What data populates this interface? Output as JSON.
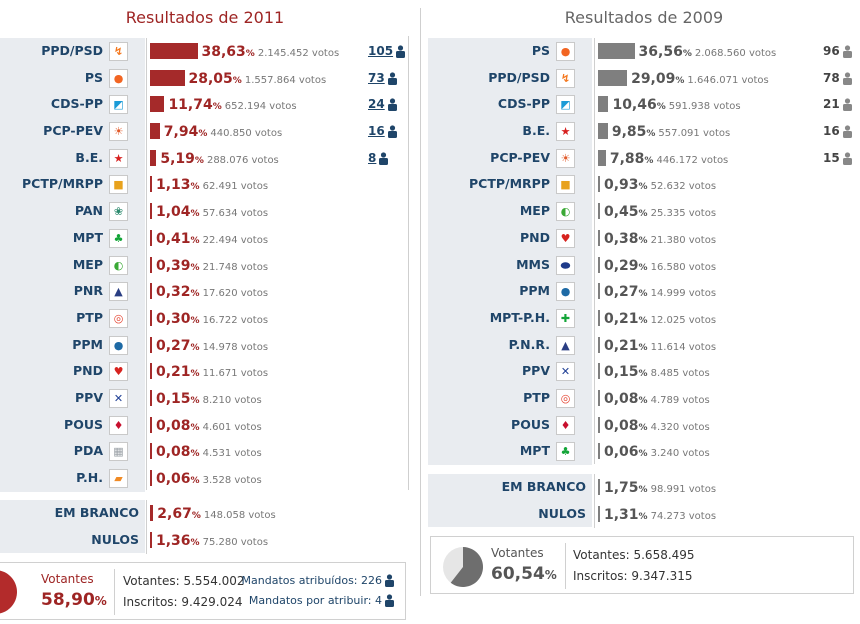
{
  "y2011": {
    "title": "Resultados de 2011",
    "parties": [
      {
        "name": "PPD/PSD",
        "icon": "psd-logo-icon",
        "glyph": "↯",
        "color": "#f47920",
        "pct_value": "38,63",
        "votes": "2.145.452 votos",
        "seats": "105",
        "pct": 38.63
      },
      {
        "name": "PS",
        "icon": "ps-logo-icon",
        "glyph": "●",
        "color": "#f26522",
        "pct_value": "28,05",
        "votes": "1.557.864 votos",
        "seats": "73",
        "pct": 28.05
      },
      {
        "name": "CDS-PP",
        "icon": "cds-pp-logo-icon",
        "glyph": "◩",
        "color": "#1b9bd7",
        "pct_value": "11,74",
        "votes": "652.194 votos",
        "seats": "24",
        "pct": 11.74
      },
      {
        "name": "PCP-PEV",
        "icon": "pcp-pev-logo-icon",
        "glyph": "☀",
        "color": "#e15a2a",
        "pct_value": "7,94",
        "votes": "440.850 votos",
        "seats": "16",
        "pct": 7.94
      },
      {
        "name": "B.E.",
        "icon": "be-logo-icon",
        "glyph": "★",
        "color": "#d7201f",
        "pct_value": "5,19",
        "votes": "288.076 votos",
        "seats": "8",
        "pct": 5.19
      },
      {
        "name": "PCTP/MRPP",
        "icon": "pctp-mrpp-logo-icon",
        "glyph": "■",
        "color": "#e8a21d",
        "pct_value": "1,13",
        "votes": "62.491 votos",
        "seats": "",
        "pct": 1.13
      },
      {
        "name": "PAN",
        "icon": "pan-logo-icon",
        "glyph": "❀",
        "color": "#2d8a6e",
        "pct_value": "1,04",
        "votes": "57.634 votos",
        "seats": "",
        "pct": 1.04
      },
      {
        "name": "MPT",
        "icon": "mpt-logo-icon",
        "glyph": "♣",
        "color": "#13a538",
        "pct_value": "0,41",
        "votes": "22.494 votos",
        "seats": "",
        "pct": 0.41
      },
      {
        "name": "MEP",
        "icon": "mep-logo-icon",
        "glyph": "◐",
        "color": "#3aa935",
        "pct_value": "0,39",
        "votes": "21.748 votos",
        "seats": "",
        "pct": 0.39
      },
      {
        "name": "PNR",
        "icon": "pnr-logo-icon",
        "glyph": "▲",
        "color": "#2a3e83",
        "pct_value": "0,32",
        "votes": "17.620 votos",
        "seats": "",
        "pct": 0.32
      },
      {
        "name": "PTP",
        "icon": "ptp-logo-icon",
        "glyph": "◎",
        "color": "#e4402d",
        "pct_value": "0,30",
        "votes": "16.722 votos",
        "seats": "",
        "pct": 0.3
      },
      {
        "name": "PPM",
        "icon": "ppm-logo-icon",
        "glyph": "●",
        "color": "#1e6aa5",
        "pct_value": "0,27",
        "votes": "14.978 votos",
        "seats": "",
        "pct": 0.27
      },
      {
        "name": "PND",
        "icon": "pnd-logo-icon",
        "glyph": "♥",
        "color": "#d7231f",
        "pct_value": "0,21",
        "votes": "11.671 votos",
        "seats": "",
        "pct": 0.21
      },
      {
        "name": "PPV",
        "icon": "ppv-logo-icon",
        "glyph": "✕",
        "color": "#1f3f95",
        "pct_value": "0,15",
        "votes": "8.210 votos",
        "seats": "",
        "pct": 0.15
      },
      {
        "name": "POUS",
        "icon": "pous-logo-icon",
        "glyph": "♦",
        "color": "#c8102e",
        "pct_value": "0,08",
        "votes": "4.601 votos",
        "seats": "",
        "pct": 0.08
      },
      {
        "name": "PDA",
        "icon": "pda-logo-icon",
        "glyph": "▦",
        "color": "#9aa0a6",
        "pct_value": "0,08",
        "votes": "4.531 votos",
        "seats": "",
        "pct": 0.08
      },
      {
        "name": "P.H.",
        "icon": "ph-logo-icon",
        "glyph": "▰",
        "color": "#f08a24",
        "pct_value": "0,06",
        "votes": "3.528 votos",
        "seats": "",
        "pct": 0.06
      }
    ],
    "blank": [
      {
        "name": "EM BRANCO",
        "pct_value": "2,67",
        "votes": "148.058 votos",
        "pct": 2.67
      },
      {
        "name": "NULOS",
        "pct_value": "1,36",
        "votes": "75.280 votos",
        "pct": 1.36
      }
    ],
    "summary": {
      "votantes_label": "Votantes",
      "votantes_pct": "58,90",
      "votantes_pct_num": 58.9,
      "votantes_line": "Votantes: 5.554.002",
      "inscritos_line": "Inscritos: 9.429.024",
      "mandatos_atribuidos": "Mandatos atribuídos: 226",
      "mandatos_por_atribuir": "Mandatos por atribuir: 4"
    }
  },
  "y2009": {
    "title": "Resultados de 2009",
    "parties": [
      {
        "name": "PS",
        "icon": "ps-logo-icon",
        "glyph": "●",
        "color": "#f26522",
        "pct_value": "36,56",
        "votes": "2.068.560 votos",
        "seats": "96",
        "pct": 36.56
      },
      {
        "name": "PPD/PSD",
        "icon": "psd-logo-icon",
        "glyph": "↯",
        "color": "#f47920",
        "pct_value": "29,09",
        "votes": "1.646.071 votos",
        "seats": "78",
        "pct": 29.09
      },
      {
        "name": "CDS-PP",
        "icon": "cds-pp-logo-icon",
        "glyph": "◩",
        "color": "#1b9bd7",
        "pct_value": "10,46",
        "votes": "591.938 votos",
        "seats": "21",
        "pct": 10.46
      },
      {
        "name": "B.E.",
        "icon": "be-logo-icon",
        "glyph": "★",
        "color": "#d7201f",
        "pct_value": "9,85",
        "votes": "557.091 votos",
        "seats": "16",
        "pct": 9.85
      },
      {
        "name": "PCP-PEV",
        "icon": "pcp-pev-logo-icon",
        "glyph": "☀",
        "color": "#e15a2a",
        "pct_value": "7,88",
        "votes": "446.172 votos",
        "seats": "15",
        "pct": 7.88
      },
      {
        "name": "PCTP/MRPP",
        "icon": "pctp-mrpp-logo-icon",
        "glyph": "■",
        "color": "#e8a21d",
        "pct_value": "0,93",
        "votes": "52.632 votos",
        "seats": "",
        "pct": 0.93
      },
      {
        "name": "MEP",
        "icon": "mep-logo-icon",
        "glyph": "◐",
        "color": "#3aa935",
        "pct_value": "0,45",
        "votes": "25.335 votos",
        "seats": "",
        "pct": 0.45
      },
      {
        "name": "PND",
        "icon": "pnd-logo-icon",
        "glyph": "♥",
        "color": "#d7231f",
        "pct_value": "0,38",
        "votes": "21.380 votos",
        "seats": "",
        "pct": 0.38
      },
      {
        "name": "MMS",
        "icon": "mms-logo-icon",
        "glyph": "⬬",
        "color": "#1e3a8a",
        "pct_value": "0,29",
        "votes": "16.580 votos",
        "seats": "",
        "pct": 0.29
      },
      {
        "name": "PPM",
        "icon": "ppm-logo-icon",
        "glyph": "●",
        "color": "#1e6aa5",
        "pct_value": "0,27",
        "votes": "14.999 votos",
        "seats": "",
        "pct": 0.27
      },
      {
        "name": "MPT-P.H.",
        "icon": "mpt-ph-logo-icon",
        "glyph": "✚",
        "color": "#13a538",
        "pct_value": "0,21",
        "votes": "12.025 votos",
        "seats": "",
        "pct": 0.21
      },
      {
        "name": "P.N.R.",
        "icon": "pnr-logo-icon",
        "glyph": "▲",
        "color": "#2a3e83",
        "pct_value": "0,21",
        "votes": "11.614 votos",
        "seats": "",
        "pct": 0.21
      },
      {
        "name": "PPV",
        "icon": "ppv-logo-icon",
        "glyph": "✕",
        "color": "#1f3f95",
        "pct_value": "0,15",
        "votes": "8.485 votos",
        "seats": "",
        "pct": 0.15
      },
      {
        "name": "PTP",
        "icon": "ptp-logo-icon",
        "glyph": "◎",
        "color": "#e4402d",
        "pct_value": "0,08",
        "votes": "4.789 votos",
        "seats": "",
        "pct": 0.08
      },
      {
        "name": "POUS",
        "icon": "pous-logo-icon",
        "glyph": "♦",
        "color": "#c8102e",
        "pct_value": "0,08",
        "votes": "4.320 votos",
        "seats": "",
        "pct": 0.08
      },
      {
        "name": "MPT",
        "icon": "mpt-logo-icon",
        "glyph": "♣",
        "color": "#13a538",
        "pct_value": "0,06",
        "votes": "3.240 votos",
        "seats": "",
        "pct": 0.06
      }
    ],
    "blank": [
      {
        "name": "EM BRANCO",
        "pct_value": "1,75",
        "votes": "98.991 votos",
        "pct": 1.75
      },
      {
        "name": "NULOS",
        "pct_value": "1,31",
        "votes": "74.273 votos",
        "pct": 1.31
      }
    ],
    "summary": {
      "votantes_label": "Votantes",
      "votantes_pct": "60,54",
      "votantes_pct_num": 60.54,
      "votantes_line": "Votantes: 5.658.495",
      "inscritos_line": "Inscritos: 9.347.315"
    }
  },
  "pct_sign": "%",
  "colors": {
    "red": "#a52a2a",
    "gray": "#7f7f7f",
    "navy": "#1f4569",
    "label_bg": "#e9ecf0"
  }
}
